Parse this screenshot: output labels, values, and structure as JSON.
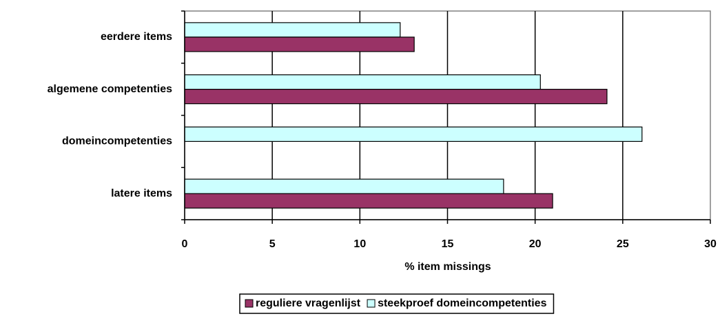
{
  "chart_data": {
    "type": "hbar",
    "categories": [
      "eerdere items",
      "algemene competenties",
      "domeincompetenties",
      "latere items"
    ],
    "series": [
      {
        "name": "reguliere vragenlijst",
        "color": "#993366",
        "values": [
          13.1,
          24.1,
          null,
          21.0
        ]
      },
      {
        "name": "steekproef domeincompetenties",
        "color": "#ccffff",
        "values": [
          12.3,
          20.3,
          26.1,
          18.2
        ]
      }
    ],
    "xlabel": "% item missings",
    "xlim": [
      0,
      30
    ],
    "xticks": [
      0,
      5,
      10,
      15,
      20,
      25,
      30
    ],
    "grid": true,
    "legend": "bottom"
  }
}
